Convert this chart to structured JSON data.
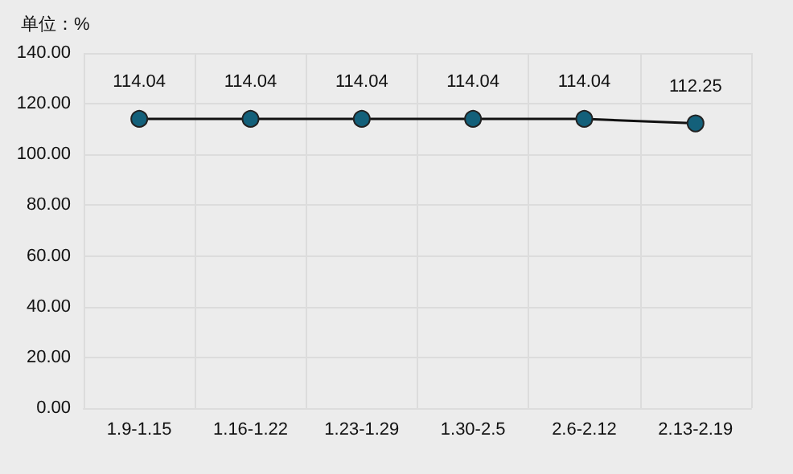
{
  "chart_data": {
    "type": "line",
    "ylabel": "单位：%",
    "categories": [
      "1.9-1.15",
      "1.16-1.22",
      "1.23-1.29",
      "1.30-2.5",
      "2.6-2.12",
      "2.13-2.19"
    ],
    "series": [
      {
        "color": "#13607a",
        "values": [
          114.04,
          114.04,
          114.04,
          114.04,
          114.04,
          112.25
        ]
      }
    ],
    "ylim": [
      0,
      140
    ],
    "yticks": [
      {
        "value": 0,
        "label": "0.00"
      },
      {
        "value": 20,
        "label": "20.00"
      },
      {
        "value": 40,
        "label": "40.00"
      },
      {
        "value": 60,
        "label": "60.00"
      },
      {
        "value": 80,
        "label": "80.00"
      },
      {
        "value": 100,
        "label": "100.00"
      },
      {
        "value": 120,
        "label": "120.00"
      },
      {
        "value": 140,
        "label": "140.00"
      }
    ],
    "grid": true,
    "marker": "circle",
    "line_style": "solid",
    "data_labels": true
  }
}
